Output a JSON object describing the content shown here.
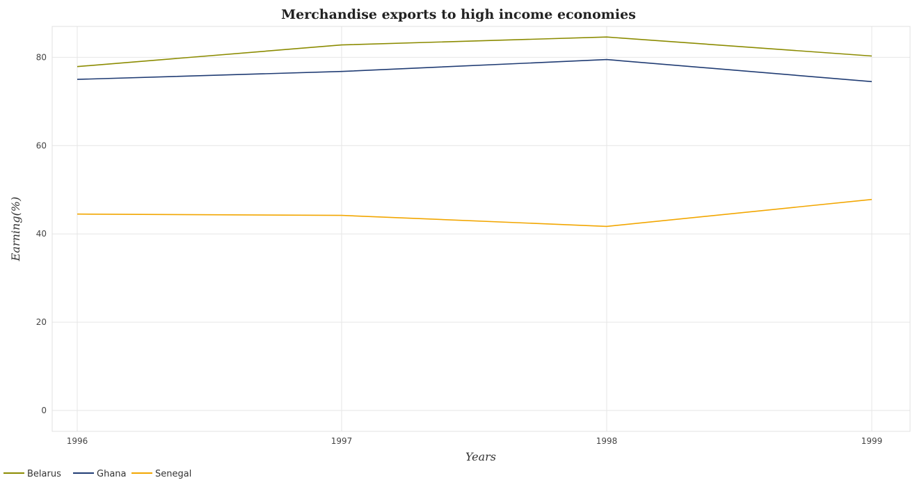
{
  "chart_data": {
    "type": "line",
    "title": "Merchandise exports to high income economies",
    "xlabel": "Years",
    "ylabel": "Earning(%)",
    "x": [
      "1996",
      "1997",
      "1998",
      "1999"
    ],
    "ylim": [
      0,
      87
    ],
    "yticks": [
      0,
      20,
      40,
      60,
      80
    ],
    "grid": true,
    "legend": "bottom-left",
    "series": [
      {
        "name": "Belarus",
        "color": "#8B8B00",
        "values": [
          77.9,
          82.8,
          84.6,
          80.3
        ]
      },
      {
        "name": "Ghana",
        "color": "#1F3B73",
        "values": [
          75.0,
          76.8,
          79.5,
          74.5
        ]
      },
      {
        "name": "Senegal",
        "color": "#F2A600",
        "values": [
          44.5,
          44.2,
          41.7,
          47.8
        ]
      }
    ]
  }
}
